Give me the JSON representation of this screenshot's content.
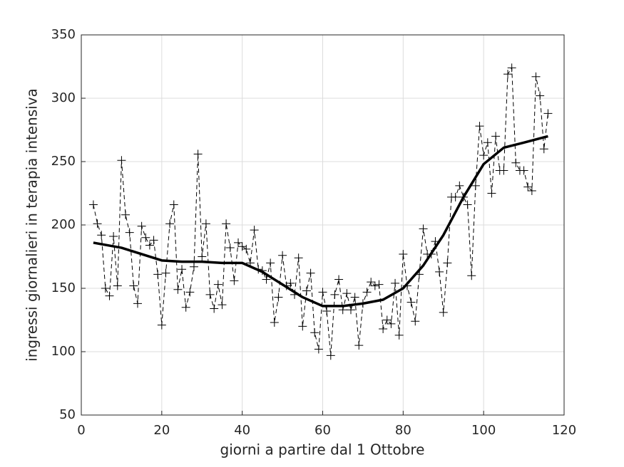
{
  "chart_data": {
    "type": "line",
    "x_label": "giorni a partire dal 1 Ottobre",
    "y_label": "ingressi giornalieri in terapia intensiva",
    "xlim": [
      0,
      120
    ],
    "xticks": [
      0,
      20,
      40,
      60,
      80,
      100,
      120
    ],
    "ylim": [
      50,
      350
    ],
    "yticks": [
      50,
      100,
      150,
      200,
      250,
      300,
      350
    ],
    "grid": true,
    "series": [
      {
        "color": "#000000",
        "line_style": "dashed",
        "marker": "+",
        "x": [
          3,
          4,
          5,
          6,
          7,
          8,
          9,
          10,
          11,
          12,
          13,
          14,
          15,
          16,
          17,
          18,
          19,
          20,
          21,
          22,
          23,
          24,
          25,
          26,
          27,
          28,
          29,
          30,
          31,
          32,
          33,
          34,
          35,
          36,
          37,
          38,
          39,
          40,
          41,
          42,
          43,
          44,
          45,
          46,
          47,
          48,
          49,
          50,
          51,
          52,
          53,
          54,
          55,
          56,
          57,
          58,
          59,
          60,
          61,
          62,
          63,
          64,
          65,
          66,
          67,
          68,
          69,
          70,
          71,
          72,
          73,
          74,
          75,
          76,
          77,
          78,
          79,
          80,
          81,
          82,
          83,
          84,
          85,
          86,
          87,
          88,
          89,
          90,
          91,
          92,
          93,
          94,
          95,
          96,
          97,
          98,
          99,
          100,
          101,
          102,
          103,
          104,
          105,
          106,
          107,
          108,
          109,
          110,
          111,
          112,
          113,
          114,
          115,
          116
        ],
        "values": [
          216,
          201,
          192,
          150,
          144,
          191,
          152,
          251,
          208,
          194,
          152,
          138,
          199,
          190,
          184,
          188,
          161,
          121,
          162,
          201,
          216,
          149,
          165,
          135,
          147,
          167,
          256,
          175,
          201,
          145,
          134,
          153,
          137,
          201,
          182,
          156,
          186,
          183,
          181,
          170,
          196,
          165,
          164,
          157,
          170,
          123,
          143,
          176,
          152,
          154,
          145,
          174,
          120,
          148,
          162,
          115,
          102,
          147,
          132,
          97,
          145,
          157,
          133,
          146,
          133,
          143,
          105,
          138,
          147,
          155,
          152,
          153,
          118,
          125,
          122,
          154,
          113,
          177,
          152,
          139,
          124,
          161,
          197,
          177,
          177,
          187,
          163,
          131,
          170,
          222,
          222,
          231,
          222,
          216,
          160,
          231,
          278,
          255,
          265,
          225,
          270,
          243,
          243,
          319,
          324,
          249,
          243,
          243,
          230,
          227,
          317,
          302,
          260,
          288
        ]
      },
      {
        "color": "#000000",
        "line_style": "solid",
        "x": [
          3,
          10,
          15,
          20,
          25,
          30,
          35,
          40,
          45,
          50,
          55,
          60,
          65,
          70,
          75,
          80,
          85,
          90,
          95,
          100,
          105,
          110,
          116
        ],
        "values": [
          186,
          182,
          177,
          172,
          171,
          171,
          170,
          170,
          163,
          153,
          143,
          136,
          136,
          138,
          141,
          150,
          168,
          192,
          222,
          248,
          261,
          265,
          270
        ]
      }
    ]
  }
}
